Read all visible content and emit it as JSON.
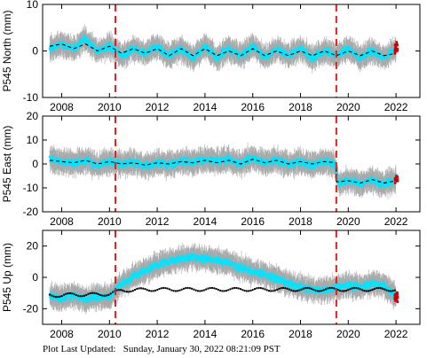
{
  "footer": {
    "label": "Plot Last Updated:",
    "timestamp": "Sunday, January 30, 2022 08:21:09 PST"
  },
  "colors": {
    "data_points": "#00e5ff",
    "error_bars": "#a8a8a8",
    "model_line": "#000000",
    "event_lines": "#e02020",
    "recent_points": "#cc0000"
  },
  "chart_data": [
    {
      "type": "scatter",
      "ylabel": "P545 North (mm)",
      "ylim": [
        -10,
        10
      ],
      "yticks": [
        -10,
        0,
        10
      ],
      "xlim": [
        2007.2,
        2023.0
      ],
      "xticks": [
        2008,
        2010,
        2012,
        2014,
        2016,
        2018,
        2020,
        2022
      ],
      "event_lines": [
        2010.25,
        2019.5
      ],
      "series": [
        {
          "x": [
            2007.5,
            2008.0,
            2008.5,
            2009.0,
            2009.5,
            2010.0,
            2010.5,
            2011.0,
            2011.5,
            2012.0,
            2012.5,
            2013.0,
            2013.5,
            2014.0,
            2014.5,
            2015.0,
            2015.5,
            2016.0,
            2016.5,
            2017.0,
            2017.5,
            2018.0,
            2018.5,
            2019.0,
            2019.5,
            2020.0,
            2020.5,
            2021.0,
            2021.5,
            2022.0
          ],
          "y": [
            0.5,
            1.5,
            0.5,
            2.5,
            0.0,
            1.0,
            -1.0,
            0.5,
            -0.5,
            1.0,
            -1.0,
            0.5,
            -1.5,
            1.0,
            -1.5,
            0.5,
            -1.0,
            1.0,
            -1.5,
            0.5,
            -1.0,
            0.5,
            -1.5,
            0.0,
            -1.0,
            0.5,
            -1.5,
            0.0,
            -1.5,
            0.5
          ]
        }
      ],
      "model": {
        "x": [
          2007.5,
          2008.0,
          2008.5,
          2009.0,
          2009.5,
          2010.0,
          2010.5,
          2011.0,
          2011.5,
          2012.0,
          2012.5,
          2013.0,
          2013.5,
          2014.0,
          2014.5,
          2015.0,
          2015.5,
          2016.0,
          2016.5,
          2017.0,
          2017.5,
          2018.0,
          2018.5,
          2019.0,
          2019.5,
          2020.0,
          2020.5,
          2021.0,
          2021.5,
          2022.0
        ],
        "y": [
          1.0,
          1.5,
          0.5,
          1.5,
          0.0,
          1.0,
          -0.5,
          0.5,
          -0.5,
          0.5,
          -1.0,
          0.5,
          -1.0,
          0.5,
          -1.0,
          0.0,
          -1.0,
          0.5,
          -1.0,
          0.0,
          -1.0,
          0.0,
          -1.0,
          0.0,
          -1.0,
          0.0,
          -1.0,
          0.0,
          -1.0,
          -0.5
        ]
      }
    },
    {
      "type": "scatter",
      "ylabel": "P545 East (mm)",
      "ylim": [
        -20,
        20
      ],
      "yticks": [
        -20,
        -10,
        0,
        10,
        20
      ],
      "xlim": [
        2007.2,
        2023.0
      ],
      "xticks": [
        2008,
        2010,
        2012,
        2014,
        2016,
        2018,
        2020,
        2022
      ],
      "event_lines": [
        2010.25,
        2019.5
      ],
      "series": [
        {
          "x": [
            2007.5,
            2008.0,
            2008.5,
            2009.0,
            2009.5,
            2010.0,
            2010.5,
            2011.0,
            2011.5,
            2012.0,
            2012.5,
            2013.0,
            2013.5,
            2014.0,
            2014.5,
            2015.0,
            2015.5,
            2016.0,
            2016.5,
            2017.0,
            2017.5,
            2018.0,
            2018.5,
            2019.0,
            2019.4,
            2019.6,
            2020.0,
            2020.5,
            2021.0,
            2021.5,
            2022.0
          ],
          "y": [
            2.0,
            1.0,
            0.5,
            1.5,
            -0.5,
            1.0,
            0.0,
            0.5,
            -1.0,
            0.5,
            0.0,
            1.0,
            0.5,
            2.0,
            1.0,
            1.5,
            0.0,
            2.5,
            0.5,
            1.5,
            0.0,
            1.0,
            -0.5,
            1.0,
            0.5,
            -8.0,
            -7.0,
            -8.5,
            -6.5,
            -8.5,
            -6.5
          ]
        }
      ],
      "model": {
        "x": [
          2007.5,
          2008.0,
          2008.5,
          2009.0,
          2009.5,
          2010.0,
          2010.5,
          2011.0,
          2011.5,
          2012.0,
          2012.5,
          2013.0,
          2013.5,
          2014.0,
          2014.5,
          2015.0,
          2015.5,
          2016.0,
          2016.5,
          2017.0,
          2017.5,
          2018.0,
          2018.5,
          2019.0,
          2019.49,
          2019.51,
          2020.0,
          2020.5,
          2021.0,
          2021.5,
          2022.0
        ],
        "y": [
          1.5,
          1.0,
          0.5,
          1.5,
          0.0,
          1.0,
          0.0,
          0.5,
          -0.5,
          0.5,
          0.0,
          1.0,
          0.5,
          1.5,
          0.5,
          1.5,
          0.0,
          2.0,
          0.5,
          1.5,
          0.0,
          1.0,
          0.0,
          1.0,
          0.5,
          -7.5,
          -7.0,
          -8.0,
          -6.5,
          -8.0,
          -7.0
        ]
      }
    },
    {
      "type": "scatter",
      "ylabel": "P545 Up (mm)",
      "ylim": [
        -30,
        30
      ],
      "yticks": [
        -20,
        0,
        20
      ],
      "xlim": [
        2007.2,
        2023.0
      ],
      "xticks": [
        2008,
        2010,
        2012,
        2014,
        2016,
        2018,
        2020,
        2022
      ],
      "xtick_labels": [
        "2008",
        "2010",
        "2012",
        "2014",
        "2016",
        "2018",
        "2020",
        "2022"
      ],
      "event_lines": [
        2010.25,
        2019.5
      ],
      "series": [
        {
          "x": [
            2007.5,
            2008.0,
            2008.5,
            2009.0,
            2009.5,
            2010.0,
            2010.5,
            2011.0,
            2011.5,
            2012.0,
            2012.5,
            2013.0,
            2013.5,
            2014.0,
            2014.5,
            2015.0,
            2015.5,
            2016.0,
            2016.5,
            2017.0,
            2017.5,
            2018.0,
            2018.5,
            2019.0,
            2019.5,
            2020.0,
            2020.5,
            2021.0,
            2021.5,
            2022.0
          ],
          "y": [
            -12,
            -13,
            -11,
            -14,
            -12,
            -13,
            -4,
            0,
            4,
            8,
            10,
            12,
            13,
            12,
            11,
            9,
            6,
            4,
            2,
            -1,
            -4,
            -6,
            -8,
            -8,
            -7,
            -5,
            -6,
            -4,
            -5,
            -12
          ]
        }
      ],
      "model": {
        "x": [
          2007.5,
          2008.0,
          2008.5,
          2009.0,
          2009.5,
          2010.0,
          2010.5,
          2011.0,
          2011.5,
          2012.0,
          2012.5,
          2013.0,
          2013.5,
          2014.0,
          2014.5,
          2015.0,
          2015.5,
          2016.0,
          2016.5,
          2017.0,
          2017.5,
          2018.0,
          2018.5,
          2019.0,
          2019.5,
          2020.0,
          2020.5,
          2021.0,
          2021.5,
          2022.0
        ],
        "y": [
          -11,
          -12,
          -10.5,
          -11.5,
          -10.5,
          -11,
          -8,
          -8.5,
          -7.5,
          -8,
          -7.5,
          -8,
          -7.5,
          -8,
          -7.5,
          -8,
          -7.5,
          -8,
          -7.5,
          -8,
          -7.5,
          -8,
          -7.5,
          -8,
          -7.5,
          -8,
          -7.5,
          -8,
          -7.5,
          -8
        ]
      }
    }
  ]
}
